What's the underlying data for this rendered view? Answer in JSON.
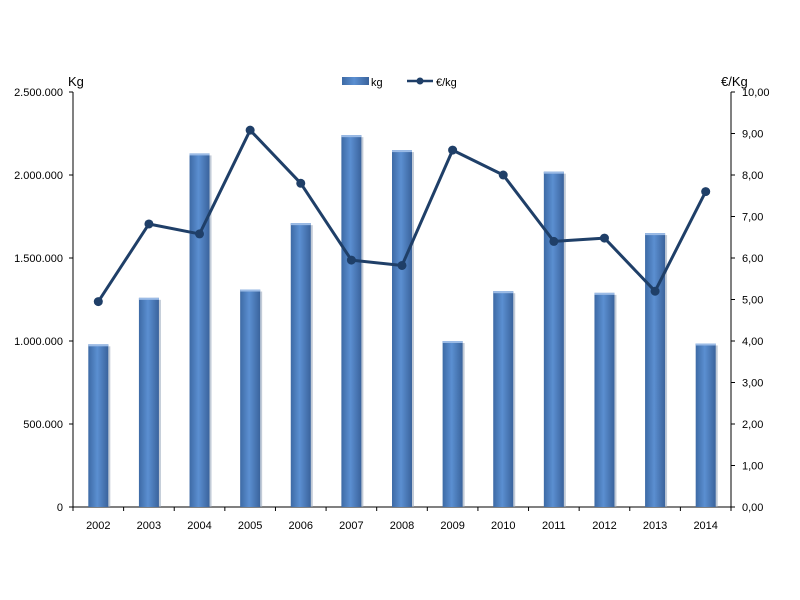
{
  "chart_data": {
    "type": "bar",
    "title": "",
    "categories": [
      "2002",
      "2003",
      "2004",
      "2005",
      "2006",
      "2007",
      "2008",
      "2009",
      "2010",
      "2011",
      "2012",
      "2013",
      "2014"
    ],
    "series": [
      {
        "name": "kg",
        "type": "bar",
        "axis": "left",
        "color": "#4f81bd",
        "values": [
          980000,
          1260000,
          2130000,
          1310000,
          1710000,
          2240000,
          2150000,
          1000000,
          1300000,
          2020000,
          1290000,
          1650000,
          985000
        ]
      },
      {
        "name": "€/kg",
        "type": "line",
        "axis": "right",
        "color": "#1f3f68",
        "values": [
          4.95,
          6.82,
          6.58,
          9.08,
          7.8,
          5.95,
          5.82,
          8.6,
          8.0,
          6.4,
          6.48,
          5.2,
          7.6
        ]
      }
    ],
    "y_left": {
      "label": "Kg",
      "ylim": [
        0,
        2500000
      ],
      "ticks": [
        "0",
        "500.000",
        "1.000.000",
        "1.500.000",
        "2.000.000",
        "2.500.000"
      ]
    },
    "y_right": {
      "label": "€/Kg",
      "ylim": [
        0,
        10
      ],
      "ticks": [
        "0,00",
        "1,00",
        "2,00",
        "3,00",
        "4,00",
        "5,00",
        "6,00",
        "7,00",
        "8,00",
        "9,00",
        "10,00"
      ]
    },
    "grid": false,
    "legend": "top-center"
  }
}
